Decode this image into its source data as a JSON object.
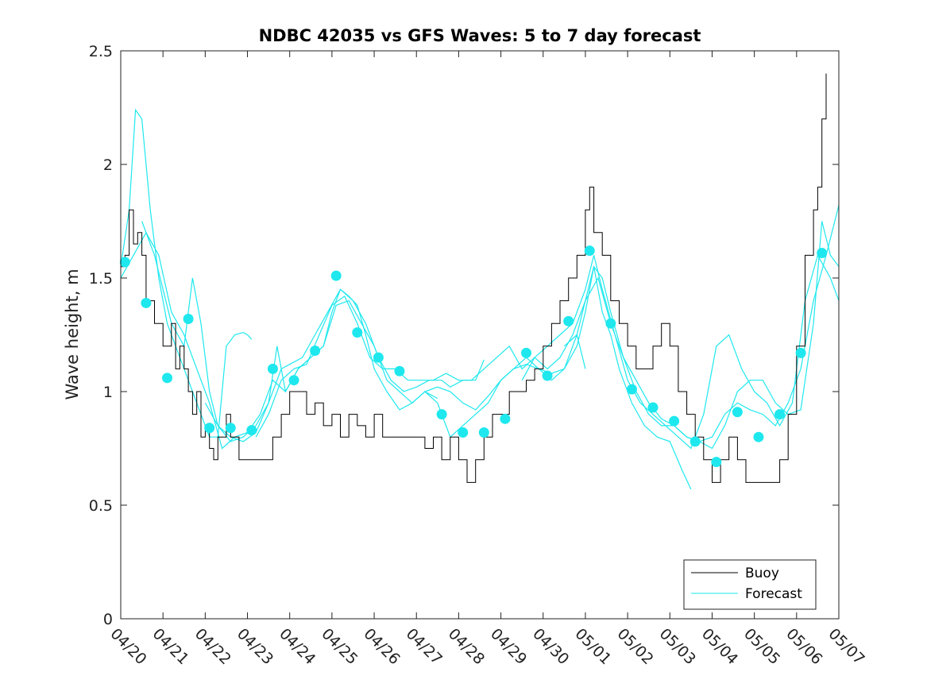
{
  "chart_data": {
    "type": "line",
    "title": "NDBC 42035 vs GFS Waves: 5 to 7 day forecast",
    "xlabel": "",
    "ylabel": "Wave height, m",
    "xlim": [
      0,
      17
    ],
    "ylim": [
      0,
      2.5
    ],
    "xticks": [
      0,
      1,
      2,
      3,
      4,
      5,
      6,
      7,
      8,
      9,
      10,
      11,
      12,
      13,
      14,
      15,
      16,
      17
    ],
    "xtick_labels": [
      "04/20",
      "04/21",
      "04/22",
      "04/23",
      "04/24",
      "04/25",
      "04/26",
      "04/27",
      "04/28",
      "04/29",
      "04/30",
      "05/01",
      "05/02",
      "05/03",
      "05/04",
      "05/05",
      "05/06",
      "05/07"
    ],
    "yticks": [
      0,
      0.5,
      1,
      1.5,
      2,
      2.5
    ],
    "ytick_labels": [
      "0",
      "0.5",
      "1",
      "1.5",
      "2",
      "2.5"
    ],
    "grid": false,
    "legend": {
      "placement": "bottom-right",
      "entries": [
        {
          "label": "Buoy",
          "color": "#000000"
        },
        {
          "label": "Forecast",
          "color": "#00e5ee"
        }
      ]
    },
    "colors": {
      "buoy": "#000000",
      "forecast": "#1ee8ee"
    },
    "buoy": {
      "name": "Buoy",
      "x": [
        0,
        0.1,
        0.2,
        0.3,
        0.4,
        0.5,
        0.6,
        0.7,
        0.8,
        0.9,
        1.0,
        1.1,
        1.2,
        1.3,
        1.4,
        1.5,
        1.6,
        1.7,
        1.8,
        1.9,
        2.0,
        2.1,
        2.2,
        2.3,
        2.4,
        2.5,
        2.6,
        2.8,
        3.0,
        3.3,
        3.6,
        3.8,
        4.0,
        4.2,
        4.4,
        4.6,
        4.8,
        5.0,
        5.2,
        5.4,
        5.6,
        5.8,
        6.0,
        6.2,
        6.5,
        6.8,
        7.0,
        7.2,
        7.4,
        7.6,
        7.8,
        8.0,
        8.2,
        8.4,
        8.6,
        8.8,
        9.0,
        9.2,
        9.4,
        9.6,
        9.8,
        10.0,
        10.2,
        10.4,
        10.6,
        10.8,
        11.0,
        11.1,
        11.2,
        11.4,
        11.6,
        11.8,
        12.0,
        12.2,
        12.4,
        12.6,
        12.8,
        13.0,
        13.2,
        13.4,
        13.6,
        13.8,
        14.0,
        14.2,
        14.4,
        14.6,
        14.8,
        15.0,
        15.2,
        15.4,
        15.6,
        15.8,
        16.0,
        16.2,
        16.4,
        16.5,
        16.6,
        16.7
      ],
      "y": [
        1.55,
        1.6,
        1.8,
        1.65,
        1.7,
        1.6,
        1.4,
        1.4,
        1.3,
        1.3,
        1.2,
        1.2,
        1.3,
        1.1,
        1.2,
        1.1,
        1.0,
        0.9,
        1.0,
        0.8,
        0.85,
        0.75,
        0.7,
        0.8,
        0.8,
        0.9,
        0.8,
        0.7,
        0.7,
        0.7,
        0.8,
        0.9,
        1.0,
        1.0,
        0.9,
        0.95,
        0.85,
        0.9,
        0.8,
        0.9,
        0.85,
        0.8,
        0.9,
        0.8,
        0.8,
        0.8,
        0.8,
        0.75,
        0.8,
        0.7,
        0.8,
        0.7,
        0.6,
        0.7,
        0.8,
        0.9,
        0.9,
        1.0,
        1.0,
        1.05,
        1.1,
        1.2,
        1.3,
        1.4,
        1.5,
        1.6,
        1.8,
        1.9,
        1.7,
        1.6,
        1.4,
        1.3,
        1.2,
        1.1,
        1.1,
        1.2,
        1.3,
        1.2,
        1.0,
        0.9,
        0.8,
        0.7,
        0.6,
        0.7,
        0.8,
        0.7,
        0.6,
        0.6,
        0.6,
        0.6,
        0.7,
        0.9,
        1.2,
        1.6,
        1.8,
        1.9,
        2.2,
        2.4
      ]
    },
    "forecast_lines": [
      {
        "name": "Forecast",
        "x": [
          0,
          0.2,
          0.35,
          0.5,
          0.7,
          0.9,
          1.1,
          1.3,
          1.5,
          1.7,
          1.9,
          2.1,
          2.3,
          2.5,
          2.7,
          2.9,
          3.0,
          3.1
        ],
        "y": [
          1.55,
          1.8,
          2.24,
          2.2,
          1.8,
          1.5,
          1.3,
          1.2,
          1.1,
          1.0,
          0.9,
          0.8,
          0.8,
          1.2,
          1.25,
          1.26,
          1.25,
          1.23
        ]
      },
      {
        "name": "Forecast",
        "x": [
          0.5,
          0.8,
          1.0,
          1.2,
          1.5,
          1.7,
          1.9,
          2.1,
          2.3,
          2.6,
          2.9,
          3.2,
          3.5,
          3.8,
          4.0,
          4.3,
          4.6,
          4.9,
          5.2,
          5.5,
          5.8,
          6.1,
          6.4,
          6.7,
          7.0,
          7.3,
          7.6,
          7.8,
          8.1,
          8.4,
          8.6
        ],
        "y": [
          1.75,
          1.6,
          1.45,
          1.3,
          1.2,
          1.5,
          1.3,
          1.0,
          0.85,
          0.8,
          0.78,
          0.82,
          0.95,
          1.1,
          1.12,
          1.15,
          1.25,
          1.35,
          1.45,
          1.4,
          1.3,
          1.15,
          1.05,
          1.0,
          1.02,
          1.05,
          1.05,
          1.02,
          1.05,
          1.05,
          1.14
        ]
      },
      {
        "name": "Forecast",
        "x": [
          0,
          0.3,
          0.6,
          0.9,
          1.2,
          1.5,
          1.8,
          2.1,
          2.4,
          2.7,
          3.0,
          3.3,
          3.6,
          3.9,
          4.2,
          4.5,
          4.8,
          5.1,
          5.4,
          5.7,
          6.0,
          6.3,
          6.6,
          6.9,
          7.2,
          7.5
        ],
        "y": [
          1.5,
          1.6,
          1.7,
          1.6,
          1.35,
          1.25,
          1.1,
          0.95,
          0.75,
          0.8,
          0.82,
          0.9,
          1.05,
          1.0,
          1.1,
          1.15,
          1.2,
          1.38,
          1.4,
          1.3,
          1.2,
          1.05,
          1.0,
          0.95,
          1.0,
          0.97
        ]
      },
      {
        "name": "Forecast",
        "x": [
          2.0,
          2.3,
          2.6,
          2.9,
          3.2,
          3.5,
          3.7,
          3.9,
          4.2,
          4.5,
          4.8,
          5.0,
          5.2,
          5.4,
          5.6,
          5.8,
          6.0,
          6.3,
          6.6,
          6.9,
          7.2,
          7.5,
          7.8,
          8.1,
          8.4,
          8.7,
          9.0,
          9.3,
          9.6,
          9.9,
          10.2,
          10.5,
          10.8,
          11.0
        ],
        "y": [
          0.95,
          0.85,
          0.78,
          0.8,
          0.85,
          0.95,
          1.2,
          1.0,
          1.1,
          1.15,
          1.2,
          1.35,
          1.45,
          1.42,
          1.38,
          1.25,
          1.1,
          1.0,
          0.92,
          0.95,
          1.0,
          1.02,
          1.0,
          0.95,
          0.92,
          0.98,
          1.05,
          1.1,
          1.12,
          1.1,
          1.08,
          1.1,
          1.25,
          1.1
        ]
      },
      {
        "name": "Forecast",
        "x": [
          3.2,
          3.5,
          3.8,
          4.1,
          4.4,
          4.7,
          5.0,
          5.3,
          5.6,
          5.9,
          6.2,
          6.5,
          6.8,
          7.1,
          7.4,
          7.7,
          8.0,
          8.3,
          8.6,
          8.9,
          9.2,
          9.5,
          9.8,
          10.1,
          10.4,
          10.7,
          11.0,
          11.2,
          11.4,
          11.6,
          11.8,
          12.1,
          12.4,
          12.7,
          13.0,
          13.3,
          13.5
        ],
        "y": [
          0.8,
          0.9,
          1.05,
          1.1,
          1.12,
          1.25,
          1.38,
          1.42,
          1.3,
          1.15,
          1.1,
          1.1,
          1.05,
          1.05,
          1.05,
          1.08,
          1.05,
          1.05,
          1.1,
          1.15,
          1.2,
          1.1,
          1.15,
          1.1,
          1.15,
          1.25,
          1.4,
          1.55,
          1.35,
          1.25,
          1.1,
          0.95,
          0.85,
          0.8,
          0.78,
          0.65,
          0.57
        ]
      },
      {
        "name": "Forecast",
        "x": [
          7.2,
          7.5,
          7.8,
          8.1,
          8.4,
          8.7,
          9.0,
          9.3,
          9.6,
          9.9,
          10.2,
          10.5,
          10.8,
          11.0,
          11.2,
          11.4,
          11.6,
          11.9,
          12.2,
          12.5,
          12.8,
          13.1,
          13.4,
          13.7,
          14.0,
          14.3,
          14.6,
          14.9,
          15.2,
          15.5,
          15.8,
          16.1,
          16.4,
          16.7,
          17.0
        ],
        "y": [
          1.0,
          0.95,
          0.8,
          0.85,
          0.9,
          0.95,
          1.05,
          1.1,
          1.15,
          1.1,
          1.05,
          1.1,
          1.2,
          1.35,
          1.55,
          1.5,
          1.35,
          1.15,
          1.0,
          0.9,
          0.85,
          0.85,
          0.8,
          0.78,
          0.8,
          0.9,
          0.95,
          0.92,
          0.9,
          0.85,
          0.95,
          1.1,
          1.4,
          1.6,
          1.82
        ]
      },
      {
        "name": "Forecast",
        "x": [
          9.5,
          9.8,
          10.1,
          10.4,
          10.7,
          11.0,
          11.2,
          11.4,
          11.7,
          12.0,
          12.3,
          12.6,
          12.9,
          13.2,
          13.5,
          13.8,
          14.1,
          14.4,
          14.7,
          15.0,
          15.3,
          15.6,
          15.9,
          16.2,
          16.5,
          16.8,
          17.0
        ],
        "y": [
          1.05,
          1.15,
          1.2,
          1.25,
          1.3,
          1.45,
          1.6,
          1.45,
          1.25,
          1.05,
          0.95,
          0.9,
          0.85,
          0.8,
          0.75,
          0.9,
          1.2,
          1.25,
          1.1,
          1.0,
          0.95,
          0.85,
          0.95,
          1.4,
          1.6,
          1.5,
          1.4
        ]
      },
      {
        "name": "Forecast",
        "x": [
          10.5,
          10.8,
          11.0,
          11.3,
          11.6,
          11.9,
          12.2,
          12.5,
          12.8,
          13.1,
          13.4,
          13.7,
          14.0,
          14.3,
          14.6,
          14.9,
          15.2,
          15.5,
          15.8,
          16.1,
          16.4,
          16.6,
          16.8,
          17.0
        ],
        "y": [
          1.2,
          1.25,
          1.4,
          1.5,
          1.3,
          1.15,
          1.05,
          0.95,
          0.88,
          0.85,
          0.8,
          0.78,
          0.75,
          0.85,
          1.0,
          1.05,
          1.05,
          0.95,
          0.9,
          0.92,
          1.3,
          1.75,
          1.6,
          1.55
        ]
      }
    ],
    "forecast_points": {
      "name": "Forecast",
      "x": [
        0.1,
        0.6,
        1.1,
        1.6,
        2.1,
        2.6,
        3.1,
        3.6,
        4.1,
        4.6,
        5.1,
        5.6,
        6.1,
        6.6,
        7.6,
        8.1,
        8.6,
        9.1,
        9.6,
        10.1,
        10.6,
        11.1,
        11.6,
        12.1,
        12.6,
        13.1,
        13.6,
        14.1,
        14.6,
        15.1,
        15.6,
        16.1,
        16.6
      ],
      "y": [
        1.57,
        1.39,
        1.06,
        1.32,
        0.84,
        0.84,
        0.83,
        1.1,
        1.05,
        1.18,
        1.51,
        1.26,
        1.15,
        1.09,
        0.9,
        0.82,
        0.82,
        0.88,
        1.17,
        1.07,
        1.31,
        1.62,
        1.3,
        1.01,
        0.93,
        0.87,
        0.78,
        0.69,
        0.91,
        0.8,
        0.9,
        1.17,
        1.61
      ]
    }
  }
}
